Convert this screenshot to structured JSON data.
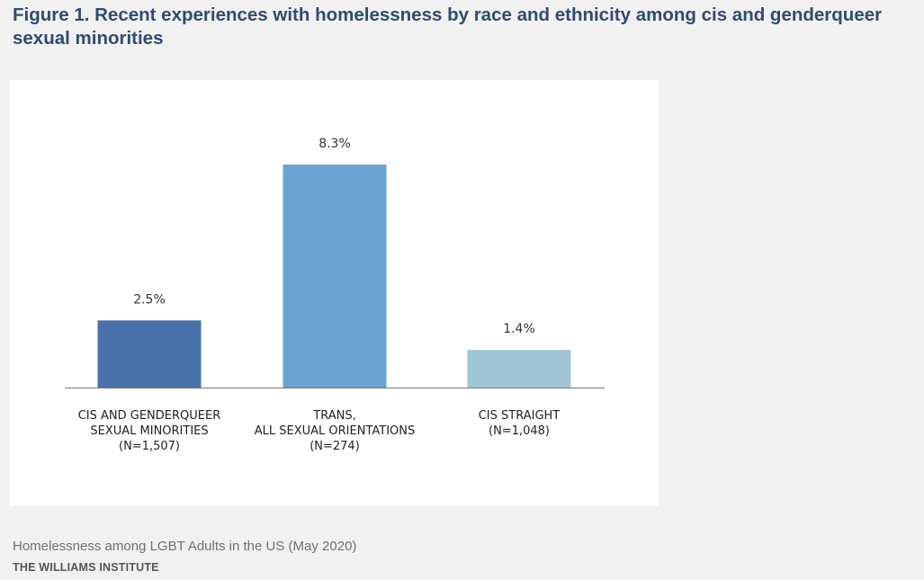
{
  "figure": {
    "title": "Figure 1. Recent experiences with homelessness by race and ethnicity among cis and genderqueer sexual minorities",
    "source": "Homelessness among LGBT Adults in the US (May 2020)",
    "organization": "THE WILLIAMS INSTITUTE"
  },
  "chart_data": {
    "type": "bar",
    "title": "",
    "xlabel": "",
    "ylabel": "",
    "ylim": [
      0,
      9.5
    ],
    "grid": false,
    "legend": "none",
    "categories": [
      [
        "CIS AND GENDERQUEER",
        "SEXUAL MINORITIES",
        "(N=1,507)"
      ],
      [
        "TRANS,",
        "ALL SEXUAL ORIENTATIONS",
        "(N=274)"
      ],
      [
        "CIS STRAIGHT",
        "(N=1,048)"
      ]
    ],
    "values": [
      2.5,
      8.3,
      1.4
    ],
    "value_labels": [
      "2.5%",
      "8.3%",
      "1.4%"
    ],
    "colors": [
      "#4a72aa",
      "#6ba4d1",
      "#9fc6d2"
    ]
  }
}
